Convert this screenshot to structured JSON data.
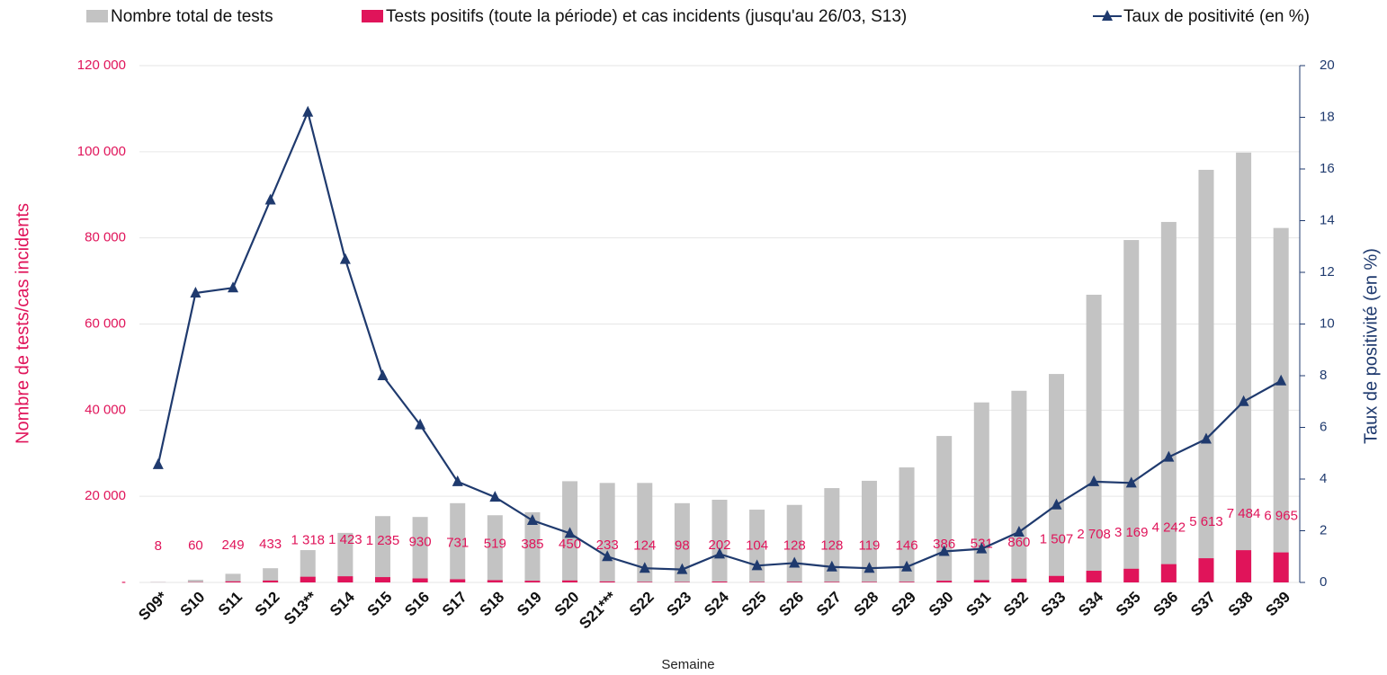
{
  "chart_data": {
    "type": "bar",
    "x_label": "Semaine",
    "y_label": "Nombre de tests/cas incidents",
    "y2_label": "Taux de positivité (en %)",
    "categories": [
      "S09*",
      "S10",
      "S11",
      "S12",
      "S13**",
      "S14",
      "S15",
      "S16",
      "S17",
      "S18",
      "S19",
      "S20",
      "S21***",
      "S22",
      "S23",
      "S24",
      "S25",
      "S26",
      "S27",
      "S28",
      "S29",
      "S30",
      "S31",
      "S32",
      "S33",
      "S34",
      "S35",
      "S36",
      "S37",
      "S38",
      "S39"
    ],
    "series": [
      {
        "name": "Nombre total de tests",
        "color": "#c3c3c3",
        "type": "bar",
        "values": [
          100,
          600,
          2000,
          3300,
          7500,
          11500,
          15400,
          15200,
          18400,
          15600,
          16300,
          23500,
          23100,
          23100,
          18400,
          19200,
          16900,
          18000,
          21900,
          23600,
          26700,
          34000,
          41800,
          44500,
          48400,
          66800,
          79500,
          83700,
          95800,
          99800,
          82300
        ]
      },
      {
        "name": "Tests positifs (toute la période) et cas incidents (jusqu'au 26/03, S13)",
        "color": "#e0145a",
        "type": "bar",
        "values": [
          8,
          60,
          249,
          433,
          1318,
          1423,
          1235,
          930,
          731,
          519,
          385,
          450,
          233,
          124,
          98,
          202,
          104,
          128,
          128,
          119,
          146,
          386,
          531,
          860,
          1507,
          2708,
          3169,
          4242,
          5613,
          7484,
          6965
        ],
        "value_labels": [
          "8",
          "60",
          "249",
          "433",
          "1 318",
          "1 423",
          "1 235",
          "930",
          "731",
          "519",
          "385",
          "450",
          "233",
          "124",
          "98",
          "202",
          "104",
          "128",
          "128",
          "119",
          "146",
          "386",
          "531",
          "860",
          "1 507",
          "2 708",
          "3 169",
          "4 242",
          "5 613",
          "7 484",
          "6 965"
        ]
      },
      {
        "name": "Taux de positivité (en %)",
        "color": "#1f3a6e",
        "type": "line",
        "axis": "y2",
        "values": [
          4.56,
          11.2,
          11.4,
          14.8,
          18.2,
          12.5,
          8.0,
          6.1,
          3.9,
          3.3,
          2.4,
          1.9,
          1.0,
          0.55,
          0.5,
          1.1,
          0.65,
          0.75,
          0.6,
          0.55,
          0.6,
          1.2,
          1.3,
          1.95,
          3.0,
          3.9,
          3.85,
          4.85,
          5.55,
          7.0,
          7.8
        ]
      }
    ],
    "ylim": [
      0,
      120000
    ],
    "yticks": [
      {
        "value": 0,
        "label": "-"
      },
      {
        "value": 20000,
        "label": "20 000"
      },
      {
        "value": 40000,
        "label": "40 000"
      },
      {
        "value": 60000,
        "label": "60 000"
      },
      {
        "value": 80000,
        "label": "80 000"
      },
      {
        "value": 100000,
        "label": "100 000"
      },
      {
        "value": 120000,
        "label": "120 000"
      }
    ],
    "y2lim": [
      0,
      20
    ],
    "y2ticks": [
      0,
      2,
      4,
      6,
      8,
      10,
      12,
      14,
      16,
      18,
      20
    ],
    "grid": true
  }
}
